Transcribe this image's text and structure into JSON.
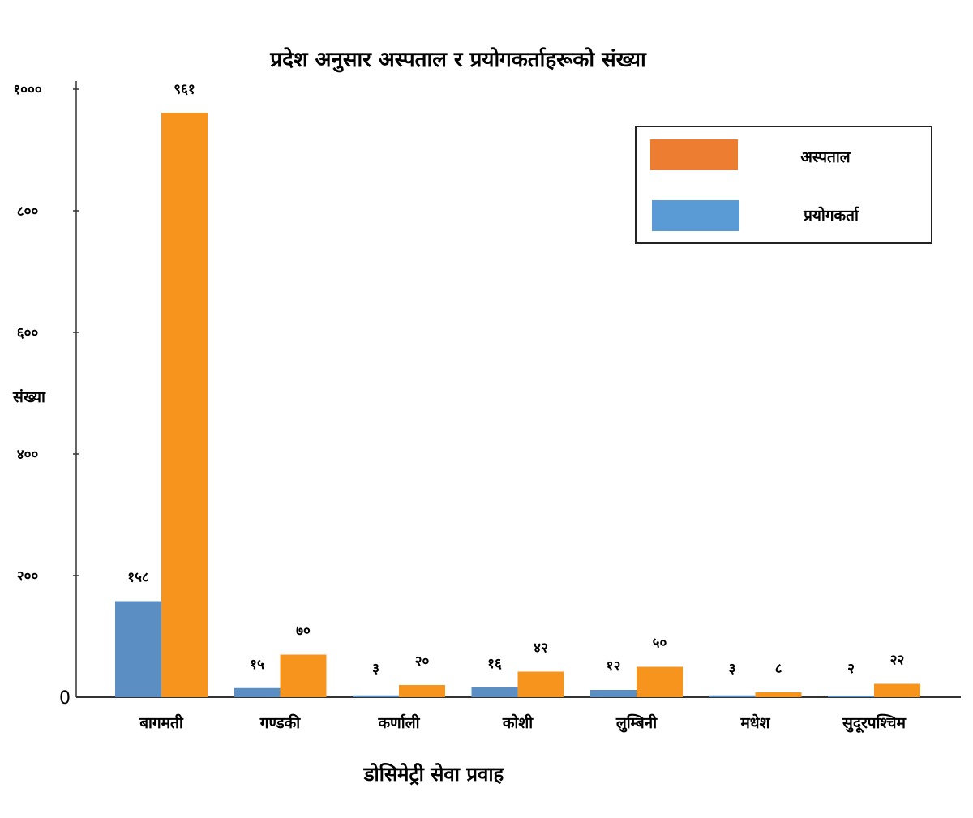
{
  "chart_data": {
    "type": "bar",
    "title": "प्रदेश अनुसार अस्पताल र प्रयोगकर्ताहरूको संख्या",
    "xlabel": "डोसिमेट्री सेवा प्रवाह",
    "ylabel": "संख्या",
    "ylim": [
      0,
      1000
    ],
    "yticks": [
      0,
      200,
      400,
      600,
      800,
      1000
    ],
    "ytick_labels": [
      "0",
      "२००",
      "४००",
      "६००",
      "८००",
      "१०००"
    ],
    "categories": [
      "बागमती",
      "गण्डकी",
      "कर्णाली",
      "कोशी",
      "लुम्बिनी",
      "मधेश",
      "सुदूरपश्चिम"
    ],
    "series": [
      {
        "name": "प्रयोगकर्ता",
        "color": "#5b8fc4",
        "values": [
          158,
          15,
          3,
          16,
          12,
          3,
          2
        ],
        "labels": [
          "१५८",
          "१५",
          "३",
          "१६",
          "१२",
          "३",
          "२"
        ]
      },
      {
        "name": "अस्पताल",
        "color": "#f7941d",
        "values": [
          961,
          70,
          20,
          42,
          50,
          8,
          22
        ],
        "labels": [
          "९६१",
          "७०",
          "२०",
          "४२",
          "५०",
          "८",
          "२२"
        ]
      }
    ],
    "legend": {
      "position": "top-right",
      "entries": [
        {
          "label": "अस्पताल",
          "color": "#ed7d31"
        },
        {
          "label": "प्रयोगकर्ता",
          "color": "#5b9bd5"
        }
      ]
    },
    "grid": false
  }
}
